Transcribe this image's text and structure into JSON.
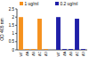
{
  "chart_data": {
    "type": "bar",
    "y_label": "OD 405 nm",
    "categories": [
      "WT",
      "ΔA",
      "ΔB",
      "ΔC",
      "ΔD",
      "WT",
      "ΔA",
      "ΔB",
      "ΔC",
      "ΔD"
    ],
    "series": [
      {
        "name": "1 ug/ml",
        "color": "#f5911e",
        "values": [
          2.0,
          0.05,
          0.05,
          1.9,
          0.05,
          null,
          null,
          null,
          null,
          null
        ]
      },
      {
        "name": "0.2 ug/ml",
        "color": "#1f1fa8",
        "values": [
          null,
          null,
          null,
          null,
          null,
          2.0,
          0.05,
          0.05,
          1.9,
          0.05
        ]
      }
    ],
    "ylim": [
      0,
      2.5
    ],
    "yticks": [
      0,
      0.5,
      1,
      1.5,
      2,
      2.5
    ],
    "legend": "top",
    "grid": false
  }
}
